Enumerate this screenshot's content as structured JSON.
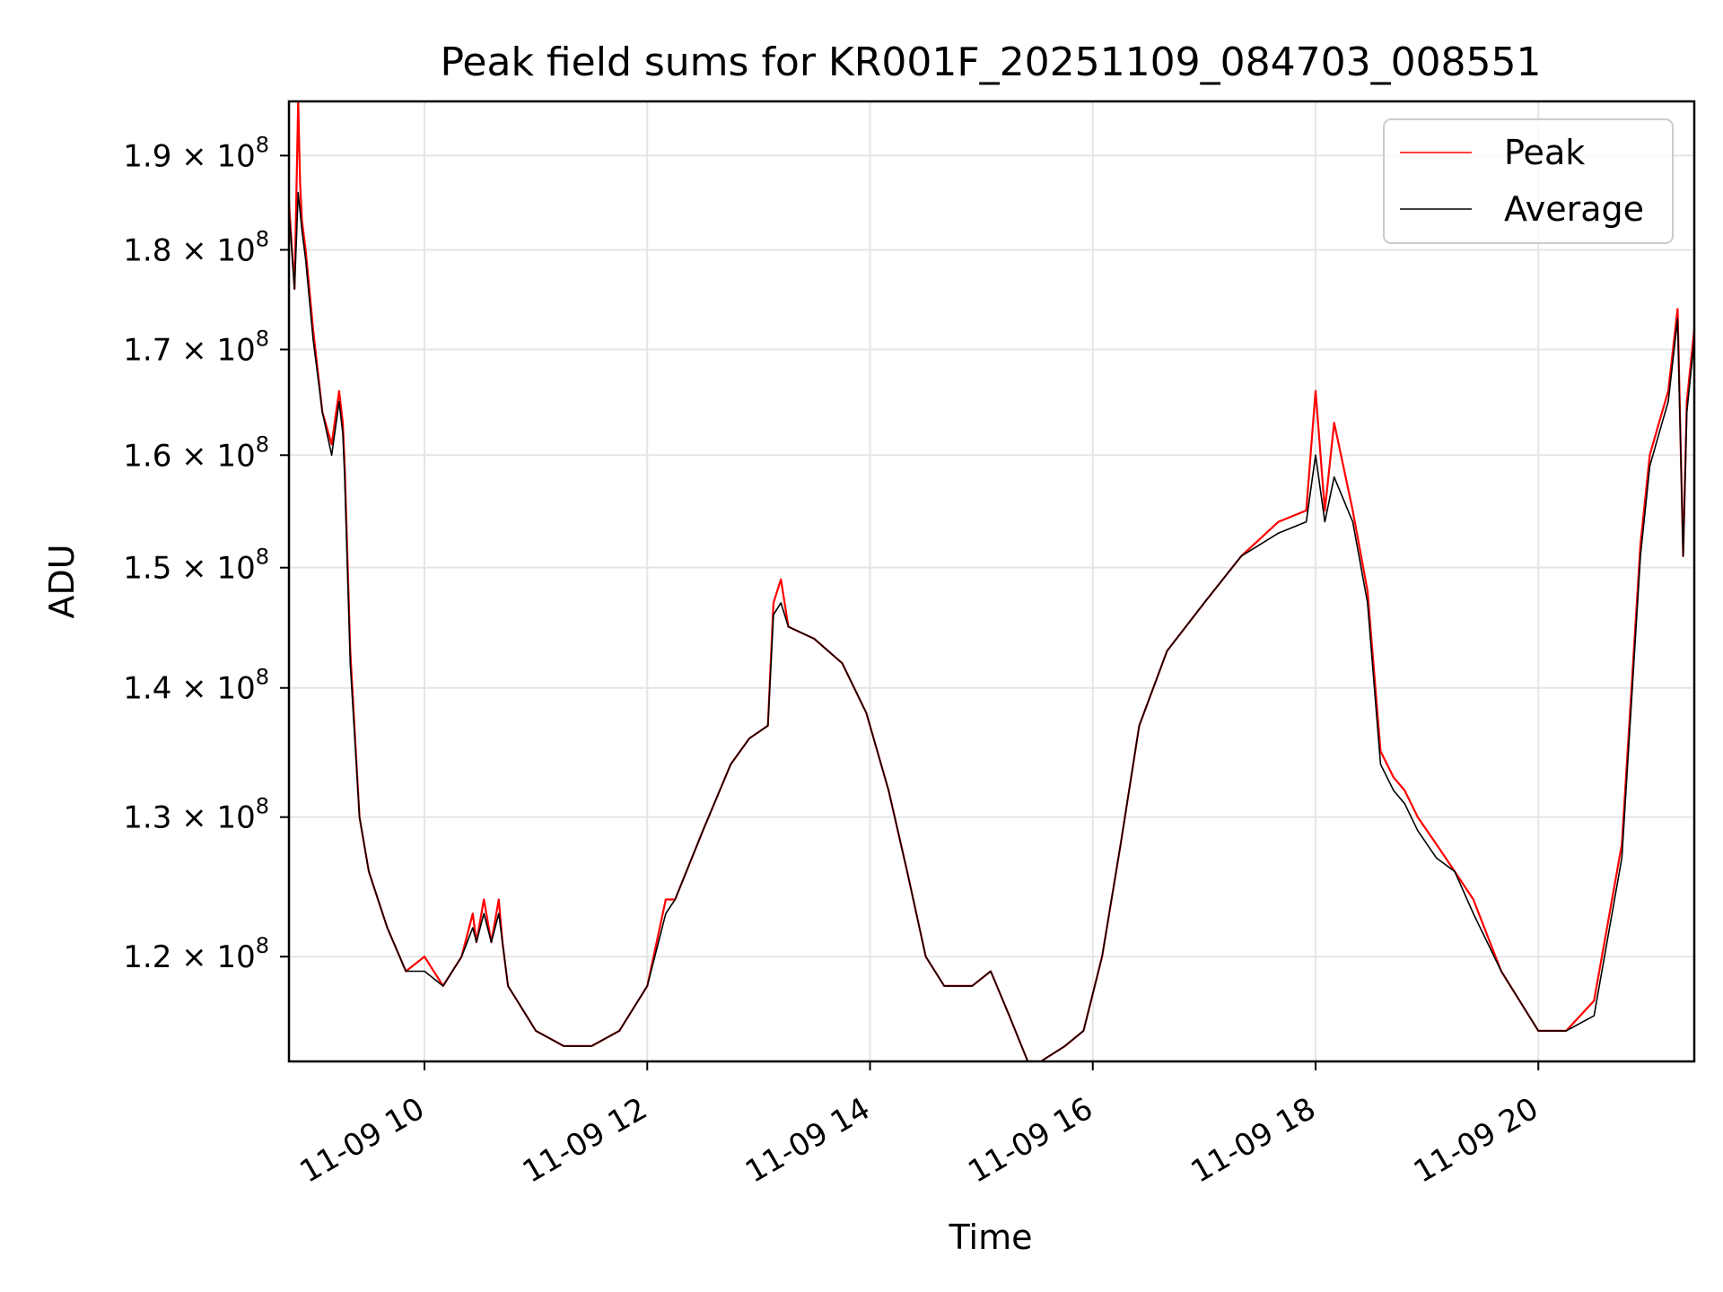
{
  "chart_data": {
    "type": "line",
    "title": "Peak field sums for KR001F_20251109_084703_008551",
    "xlabel": "Time",
    "ylabel": "ADU",
    "yscale": "log",
    "xlim": [
      "11-09 08:47",
      "11-09 21:24"
    ],
    "ylim": [
      113000000,
      196000000
    ],
    "grid": true,
    "legend_position": "top-right",
    "x_ticks": [
      "11-09 10:00",
      "11-09 12:00",
      "11-09 14:00",
      "11-09 16:00",
      "11-09 18:00",
      "11-09 20:00"
    ],
    "x_tick_labels": [
      "11-09 10",
      "11-09 12",
      "11-09 14",
      "11-09 16",
      "11-09 18",
      "11-09 20"
    ],
    "y_ticks": [
      120000000,
      130000000,
      140000000,
      150000000,
      160000000,
      170000000,
      180000000,
      190000000
    ],
    "y_tick_mantissas": [
      "1.2",
      "1.3",
      "1.4",
      "1.5",
      "1.6",
      "1.7",
      "1.8",
      "1.9"
    ],
    "y_tick_base": "10",
    "y_tick_exponent": "8",
    "series": [
      {
        "name": "Peak",
        "color": "#ff0000",
        "x": [
          "11-09 08:47",
          "11-09 08:50",
          "11-09 08:52",
          "11-09 08:53",
          "11-09 08:54",
          "11-09 08:56",
          "11-09 09:00",
          "11-09 09:05",
          "11-09 09:10",
          "11-09 09:14",
          "11-09 09:16",
          "11-09 09:17",
          "11-09 09:20",
          "11-09 09:25",
          "11-09 09:30",
          "11-09 09:40",
          "11-09 09:50",
          "11-09 10:00",
          "11-09 10:10",
          "11-09 10:20",
          "11-09 10:26",
          "11-09 10:28",
          "11-09 10:32",
          "11-09 10:36",
          "11-09 10:40",
          "11-09 10:42",
          "11-09 10:45",
          "11-09 10:50",
          "11-09 11:00",
          "11-09 11:15",
          "11-09 11:30",
          "11-09 11:45",
          "11-09 12:00",
          "11-09 12:10",
          "11-09 12:15",
          "11-09 12:30",
          "11-09 12:45",
          "11-09 12:55",
          "11-09 13:05",
          "11-09 13:08",
          "11-09 13:12",
          "11-09 13:16",
          "11-09 13:30",
          "11-09 13:45",
          "11-09 13:58",
          "11-09 14:10",
          "11-09 14:20",
          "11-09 14:30",
          "11-09 14:40",
          "11-09 14:55",
          "11-09 15:05",
          "11-09 15:15",
          "11-09 15:25",
          "11-09 15:32",
          "11-09 15:45",
          "11-09 15:55",
          "11-09 16:05",
          "11-09 16:15",
          "11-09 16:25",
          "11-09 16:40",
          "11-09 17:00",
          "11-09 17:20",
          "11-09 17:40",
          "11-09 17:55",
          "11-09 18:00",
          "11-09 18:05",
          "11-09 18:10",
          "11-09 18:20",
          "11-09 18:28",
          "11-09 18:35",
          "11-09 18:42",
          "11-09 18:48",
          "11-09 18:55",
          "11-09 19:05",
          "11-09 19:15",
          "11-09 19:25",
          "11-09 19:40",
          "11-09 20:00",
          "11-09 20:15",
          "11-09 20:30",
          "11-09 20:45",
          "11-09 20:55",
          "11-09 21:00",
          "11-09 21:05",
          "11-09 21:10",
          "11-09 21:15",
          "11-09 21:18",
          "11-09 21:20",
          "11-09 21:24"
        ],
        "values": [
          185000000,
          176000000,
          196000000,
          187000000,
          183000000,
          180000000,
          172000000,
          164000000,
          161000000,
          166000000,
          163000000,
          159000000,
          143000000,
          130000000,
          126000000,
          122000000,
          119000000,
          120000000,
          118000000,
          120000000,
          123000000,
          121000000,
          124000000,
          121000000,
          124000000,
          121000000,
          118000000,
          117000000,
          115000000,
          114000000,
          114000000,
          115000000,
          118000000,
          124000000,
          124000000,
          129000000,
          134000000,
          136000000,
          137000000,
          147000000,
          149000000,
          145000000,
          144000000,
          142000000,
          138000000,
          132000000,
          126000000,
          120000000,
          118000000,
          118000000,
          119000000,
          116000000,
          113000000,
          113000000,
          114000000,
          115000000,
          120000000,
          128000000,
          137000000,
          143000000,
          147000000,
          151000000,
          154000000,
          155000000,
          166000000,
          155000000,
          163000000,
          155000000,
          148000000,
          135000000,
          133000000,
          132000000,
          130000000,
          128000000,
          126000000,
          124000000,
          119000000,
          115000000,
          115000000,
          117000000,
          128000000,
          152000000,
          160000000,
          163000000,
          166000000,
          174000000,
          151000000,
          165000000,
          172000000
        ]
      },
      {
        "name": "Average",
        "color": "#000000",
        "x": [
          "11-09 08:47",
          "11-09 08:50",
          "11-09 08:52",
          "11-09 08:53",
          "11-09 08:54",
          "11-09 08:56",
          "11-09 09:00",
          "11-09 09:05",
          "11-09 09:10",
          "11-09 09:14",
          "11-09 09:16",
          "11-09 09:17",
          "11-09 09:20",
          "11-09 09:25",
          "11-09 09:30",
          "11-09 09:40",
          "11-09 09:50",
          "11-09 10:00",
          "11-09 10:10",
          "11-09 10:20",
          "11-09 10:26",
          "11-09 10:28",
          "11-09 10:32",
          "11-09 10:36",
          "11-09 10:40",
          "11-09 10:42",
          "11-09 10:45",
          "11-09 10:50",
          "11-09 11:00",
          "11-09 11:15",
          "11-09 11:30",
          "11-09 11:45",
          "11-09 12:00",
          "11-09 12:10",
          "11-09 12:15",
          "11-09 12:30",
          "11-09 12:45",
          "11-09 12:55",
          "11-09 13:05",
          "11-09 13:08",
          "11-09 13:12",
          "11-09 13:16",
          "11-09 13:30",
          "11-09 13:45",
          "11-09 13:58",
          "11-09 14:10",
          "11-09 14:20",
          "11-09 14:30",
          "11-09 14:40",
          "11-09 14:55",
          "11-09 15:05",
          "11-09 15:15",
          "11-09 15:25",
          "11-09 15:32",
          "11-09 15:45",
          "11-09 15:55",
          "11-09 16:05",
          "11-09 16:15",
          "11-09 16:25",
          "11-09 16:40",
          "11-09 17:00",
          "11-09 17:20",
          "11-09 17:40",
          "11-09 17:55",
          "11-09 18:00",
          "11-09 18:05",
          "11-09 18:10",
          "11-09 18:20",
          "11-09 18:28",
          "11-09 18:35",
          "11-09 18:42",
          "11-09 18:48",
          "11-09 18:55",
          "11-09 19:05",
          "11-09 19:15",
          "11-09 19:25",
          "11-09 19:40",
          "11-09 20:00",
          "11-09 20:15",
          "11-09 20:30",
          "11-09 20:45",
          "11-09 20:55",
          "11-09 21:00",
          "11-09 21:05",
          "11-09 21:10",
          "11-09 21:15",
          "11-09 21:18",
          "11-09 21:20",
          "11-09 21:24"
        ],
        "values": [
          184000000,
          176000000,
          186000000,
          184000000,
          182000000,
          179000000,
          171000000,
          164000000,
          160000000,
          165000000,
          162000000,
          158000000,
          142000000,
          130000000,
          126000000,
          122000000,
          119000000,
          119000000,
          118000000,
          120000000,
          122000000,
          121000000,
          123000000,
          121000000,
          123000000,
          121000000,
          118000000,
          117000000,
          115000000,
          114000000,
          114000000,
          115000000,
          118000000,
          123000000,
          124000000,
          129000000,
          134000000,
          136000000,
          137000000,
          146000000,
          147000000,
          145000000,
          144000000,
          142000000,
          138000000,
          132000000,
          126000000,
          120000000,
          118000000,
          118000000,
          119000000,
          116000000,
          113000000,
          113000000,
          114000000,
          115000000,
          120000000,
          128000000,
          137000000,
          143000000,
          147000000,
          151000000,
          153000000,
          154000000,
          160000000,
          154000000,
          158000000,
          154000000,
          147000000,
          134000000,
          132000000,
          131000000,
          129000000,
          127000000,
          126000000,
          123000000,
          119000000,
          115000000,
          115000000,
          116000000,
          127000000,
          151000000,
          159000000,
          162000000,
          165000000,
          173000000,
          151000000,
          164000000,
          171000000
        ]
      }
    ]
  }
}
